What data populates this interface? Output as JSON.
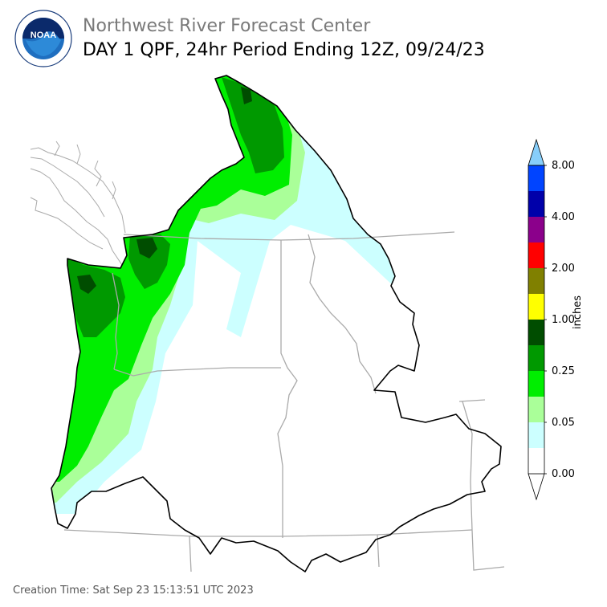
{
  "header": {
    "center_name": "Northwest River Forecast Center",
    "product_title": "DAY 1 QPF, 24hr Period Ending 12Z, 09/24/23"
  },
  "logo": {
    "text": "NOAA",
    "ring_text": "NATIONAL OCEANIC AND ATMOSPHERIC ADMINISTRATION · U.S. DEPARTMENT OF COMMERCE"
  },
  "colorbar": {
    "unit": "inches",
    "tick_labels": [
      "0.00",
      "0.05",
      "0.25",
      "1.00",
      "2.00",
      "4.00",
      "8.00"
    ],
    "colors": [
      "#ffffff",
      "#ccffff",
      "#aaff99",
      "#00ee00",
      "#009900",
      "#004d00",
      "#ffff00",
      "#808000",
      "#ff0000",
      "#8b008b",
      "#0000aa",
      "#0044ff",
      "#87cefa"
    ]
  },
  "footer": {
    "creation_time": "Creation Time: Sat Sep 23 15:13:51 UTC 2023"
  }
}
